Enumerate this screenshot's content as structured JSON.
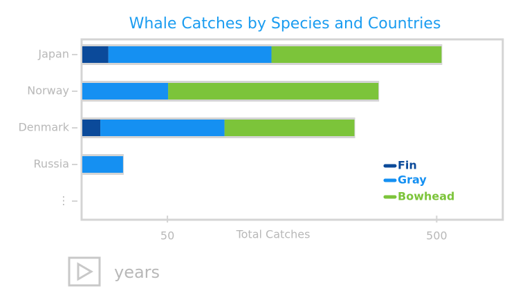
{
  "chart_data": {
    "type": "bar",
    "orientation": "horizontal",
    "stacked": true,
    "title": "Whale Catches by Species and Countries",
    "x_label": "Total Catches",
    "categories": [
      "Japan",
      "Norway",
      "Denmark",
      "Russia",
      "⋮"
    ],
    "series": [
      {
        "name": "Fin",
        "color": "#0b4a9a",
        "values": [
          30,
          0,
          28,
          0,
          null
        ]
      },
      {
        "name": "Gray",
        "color": "#1590f2",
        "values": [
          91,
          50,
          53,
          34,
          null
        ]
      },
      {
        "name": "Bowhead",
        "color": "#7cc43a",
        "values": [
          397,
          252,
          165,
          0,
          null
        ]
      }
    ],
    "xscale": "log",
    "xlim": [
      24,
      880
    ],
    "xticks": [
      50,
      500
    ],
    "legend": "lower right"
  },
  "controls": {
    "play_label": "years"
  }
}
